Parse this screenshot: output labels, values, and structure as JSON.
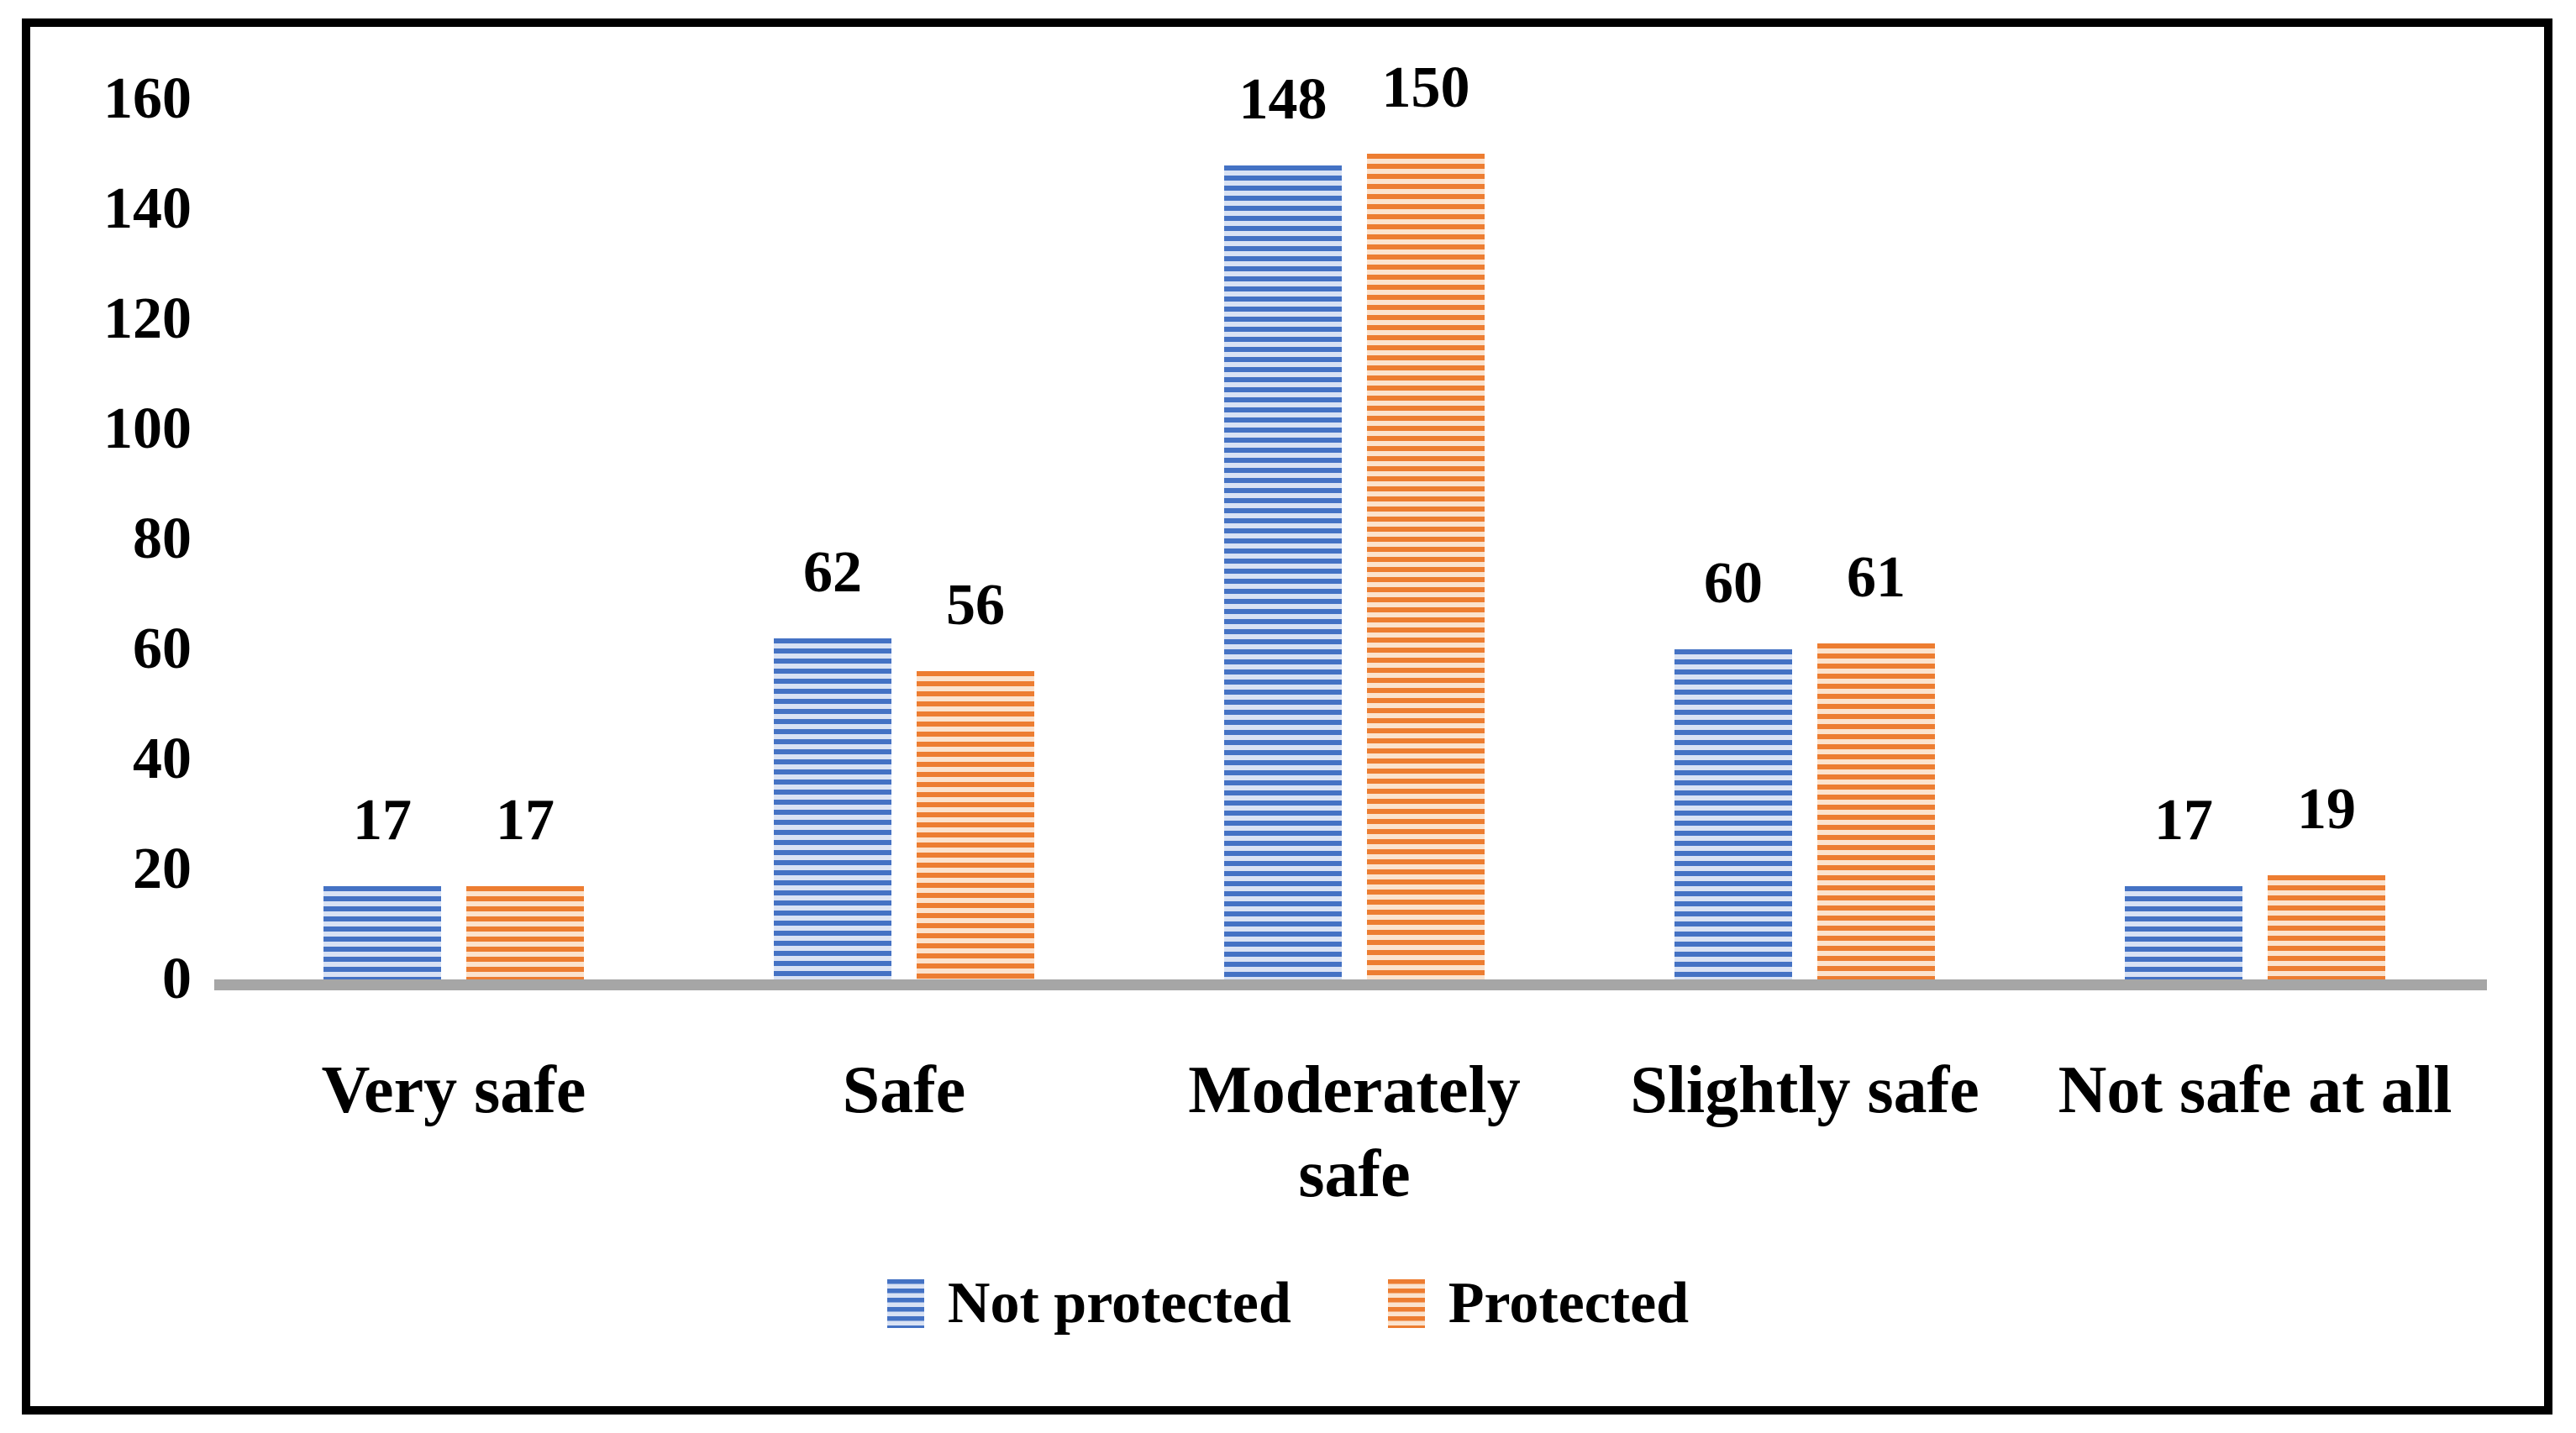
{
  "chart_data": {
    "type": "bar",
    "title": "",
    "categories": [
      "Very safe",
      "Safe",
      "Moderately safe",
      "Slightly safe",
      "Not safe at all"
    ],
    "x_tick_lines": [
      [
        "Very safe"
      ],
      [
        "Safe"
      ],
      [
        "Moderately",
        "safe"
      ],
      [
        "Slightly safe"
      ],
      [
        "Not safe at all"
      ]
    ],
    "series": [
      {
        "name": "Not protected",
        "values": [
          17,
          62,
          148,
          60,
          17
        ],
        "color": "#4472C4",
        "stripe_light": "#D9E2F4"
      },
      {
        "name": "Protected",
        "values": [
          17,
          56,
          150,
          61,
          19
        ],
        "color": "#ED7D31",
        "stripe_light": "#FBE3CE"
      }
    ],
    "data_labels": [
      {
        "category": "Very safe",
        "not_protected": 17,
        "protected": 17
      },
      {
        "category": "Safe",
        "not_protected": 62,
        "protected": 56
      },
      {
        "category": "Moderately safe",
        "not_protected": 148,
        "protected": 150
      },
      {
        "category": "Slightly safe",
        "not_protected": 60,
        "protected": 61
      },
      {
        "category": "Not safe at all",
        "not_protected": 17,
        "protected": 19
      }
    ],
    "ylim": [
      0,
      160
    ],
    "yticks": [
      0,
      20,
      40,
      60,
      80,
      100,
      120,
      140,
      160
    ],
    "grid": false,
    "legend_position": "bottom",
    "pattern": "horizontal-stripes",
    "axis_line_color": "#A6A6A6",
    "frame_color": "#000000",
    "text_color": "#000000",
    "background_color": "#FFFFFF"
  }
}
